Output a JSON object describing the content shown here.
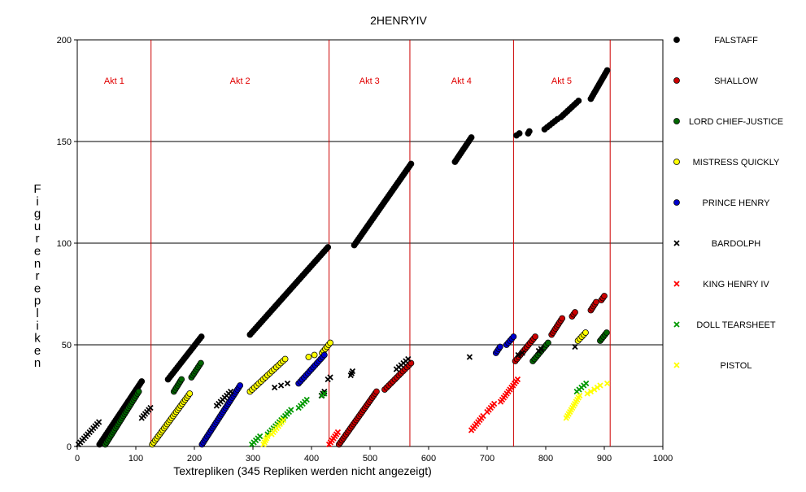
{
  "chart_data": {
    "type": "scatter",
    "title": "2HENRYIV",
    "xlabel": "Textrepliken (345 Repliken werden nicht angezeigt)",
    "ylabel": "Figurenrepliken",
    "xlim": [
      0,
      1000
    ],
    "ylim": [
      0,
      200
    ],
    "x_ticks": [
      0,
      100,
      200,
      300,
      400,
      500,
      600,
      700,
      800,
      900,
      1000
    ],
    "y_ticks": [
      0,
      50,
      100,
      150,
      200
    ],
    "gridlines_y": [
      50,
      100,
      150
    ],
    "act_boundaries": [
      126,
      430,
      568,
      745,
      910
    ],
    "acts": [
      {
        "label": "Akt 1",
        "x": 63
      },
      {
        "label": "Akt 2",
        "x": 278
      },
      {
        "label": "Akt 3",
        "x": 499
      },
      {
        "label": "Akt 4",
        "x": 656
      },
      {
        "label": "Akt 5",
        "x": 827
      }
    ],
    "act_label_y": 180,
    "legend_position": "right",
    "series": [
      {
        "name": "FALSTAFF",
        "color": "#000000",
        "marker": "circle",
        "segments": [
          [
            38,
            1,
            110,
            32
          ],
          [
            155,
            33,
            212,
            54
          ],
          [
            295,
            55,
            428,
            98
          ],
          [
            473,
            99,
            570,
            139
          ],
          [
            645,
            140,
            673,
            152
          ],
          [
            750,
            153,
            755,
            154
          ],
          [
            770,
            154,
            772,
            155
          ],
          [
            798,
            156,
            820,
            161
          ],
          [
            826,
            162,
            856,
            170
          ],
          [
            877,
            171,
            905,
            185
          ]
        ]
      },
      {
        "name": "SHALLOW",
        "color": "#cc0000",
        "marker": "circle",
        "segments": [
          [
            447,
            1,
            511,
            27
          ],
          [
            525,
            28,
            570,
            41
          ],
          [
            748,
            42,
            782,
            54
          ],
          [
            810,
            55,
            828,
            63
          ],
          [
            845,
            64,
            850,
            66
          ],
          [
            877,
            67,
            886,
            71
          ],
          [
            895,
            72,
            900,
            74
          ]
        ]
      },
      {
        "name": "LORD CHIEF-JUSTICE",
        "color": "#006600",
        "marker": "circle",
        "segments": [
          [
            48,
            1,
            105,
            27
          ],
          [
            165,
            27,
            178,
            33
          ],
          [
            195,
            34,
            211,
            41
          ],
          [
            778,
            42,
            804,
            51
          ],
          [
            893,
            52,
            904,
            56
          ]
        ]
      },
      {
        "name": "MISTRESS QUICKLY",
        "color": "#ffff00",
        "marker": "circle",
        "segments": [
          [
            128,
            1,
            192,
            26
          ],
          [
            295,
            27,
            355,
            43
          ],
          [
            395,
            44,
            405,
            45
          ],
          [
            418,
            46,
            432,
            51
          ],
          [
            855,
            52,
            868,
            56
          ]
        ]
      },
      {
        "name": "PRINCE HENRY",
        "color": "#0000cc",
        "marker": "circle",
        "segments": [
          [
            213,
            1,
            278,
            30
          ],
          [
            378,
            31,
            422,
            45
          ],
          [
            715,
            46,
            722,
            49
          ],
          [
            733,
            50,
            745,
            54
          ]
        ]
      },
      {
        "name": "BARDOLPH",
        "color": "#000000",
        "marker": "x",
        "segments": [
          [
            2,
            1,
            37,
            12
          ],
          [
            110,
            14,
            125,
            19
          ],
          [
            238,
            20,
            262,
            27
          ],
          [
            337,
            29,
            359,
            31
          ],
          [
            417,
            25,
            422,
            27
          ],
          [
            428,
            33,
            432,
            34
          ],
          [
            467,
            35,
            470,
            37
          ],
          [
            545,
            38,
            565,
            43
          ],
          [
            670,
            44,
            670,
            44
          ],
          [
            753,
            45,
            760,
            46
          ],
          [
            788,
            47,
            792,
            48
          ],
          [
            850,
            49,
            853,
            49
          ]
        ]
      },
      {
        "name": "KING HENRY IV",
        "color": "#ff0000",
        "marker": "x",
        "segments": [
          [
            430,
            1,
            445,
            7
          ],
          [
            673,
            8,
            693,
            15
          ],
          [
            700,
            17,
            712,
            21
          ],
          [
            723,
            22,
            752,
            33
          ]
        ]
      },
      {
        "name": "DOLL TEARSHEET",
        "color": "#009900",
        "marker": "x",
        "segments": [
          [
            298,
            1,
            312,
            5
          ],
          [
            325,
            6,
            365,
            18
          ],
          [
            378,
            19,
            392,
            23
          ],
          [
            418,
            25,
            422,
            26
          ],
          [
            853,
            27,
            869,
            31
          ]
        ]
      },
      {
        "name": "PISTOL",
        "color": "#ffff00",
        "marker": "x",
        "segments": [
          [
            318,
            1,
            325,
            5
          ],
          [
            332,
            6,
            352,
            13
          ],
          [
            835,
            14,
            858,
            25
          ],
          [
            871,
            26,
            883,
            28
          ],
          [
            888,
            29,
            893,
            30
          ],
          [
            905,
            31,
            910,
            31
          ]
        ]
      }
    ]
  }
}
